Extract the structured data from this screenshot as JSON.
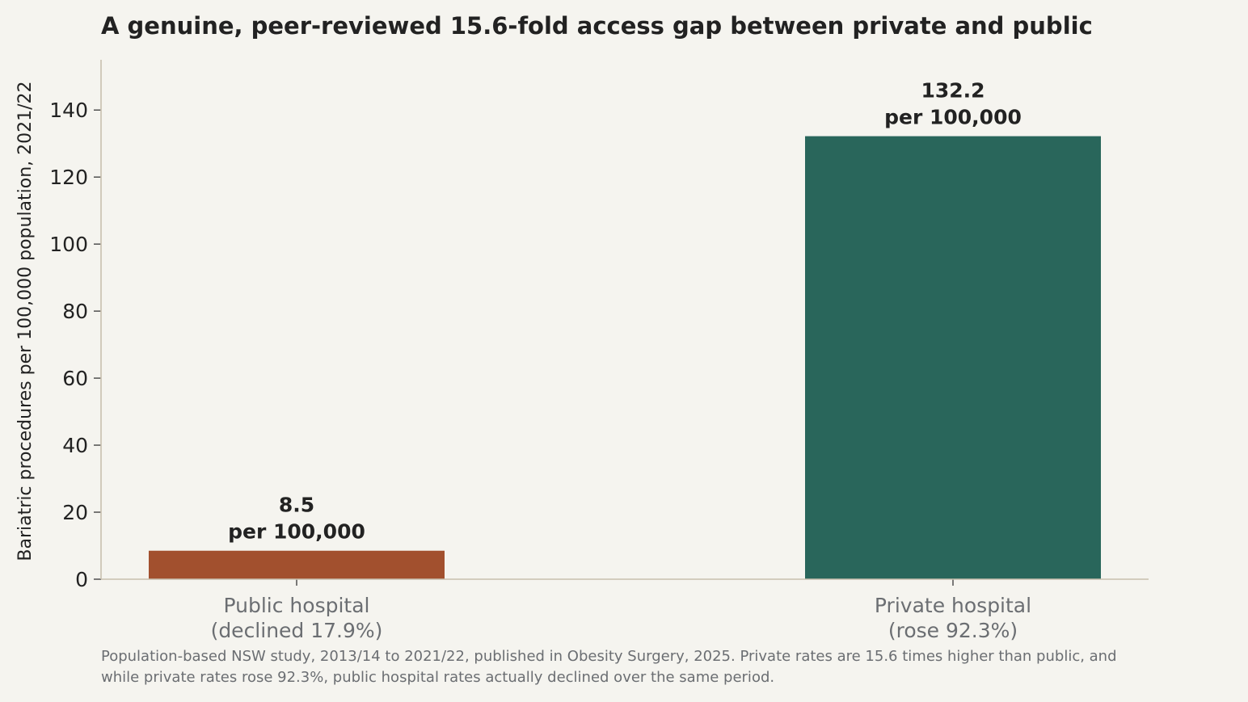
{
  "chart_data": {
    "type": "bar",
    "title": "A genuine, peer-reviewed 15.6-fold access gap between private and public",
    "ylabel": "Bariatric procedures per 100,000 population, 2021/22",
    "xlabel": "",
    "ylim": [
      0,
      155
    ],
    "yticks": [
      0,
      20,
      40,
      60,
      80,
      100,
      120,
      140
    ],
    "grid": false,
    "categories": [
      [
        "Public hospital",
        "(declined 17.9%)"
      ],
      [
        "Private hospital",
        "(rose 92.3%)"
      ]
    ],
    "values": [
      8.5,
      132.2
    ],
    "data_labels": [
      [
        "8.5",
        "per 100,000"
      ],
      [
        "132.2",
        "per 100,000"
      ]
    ],
    "colors": [
      "#a2502e",
      "#29665b"
    ],
    "axis_color": "#c8bfae"
  },
  "footnote": {
    "line1": "Population-based NSW study, 2013/14 to 2021/22, published in Obesity Surgery, 2025. Private rates are 15.6 times higher than public, and",
    "line2": "while private rates rose 92.3%, public hospital rates actually declined over the same period."
  }
}
